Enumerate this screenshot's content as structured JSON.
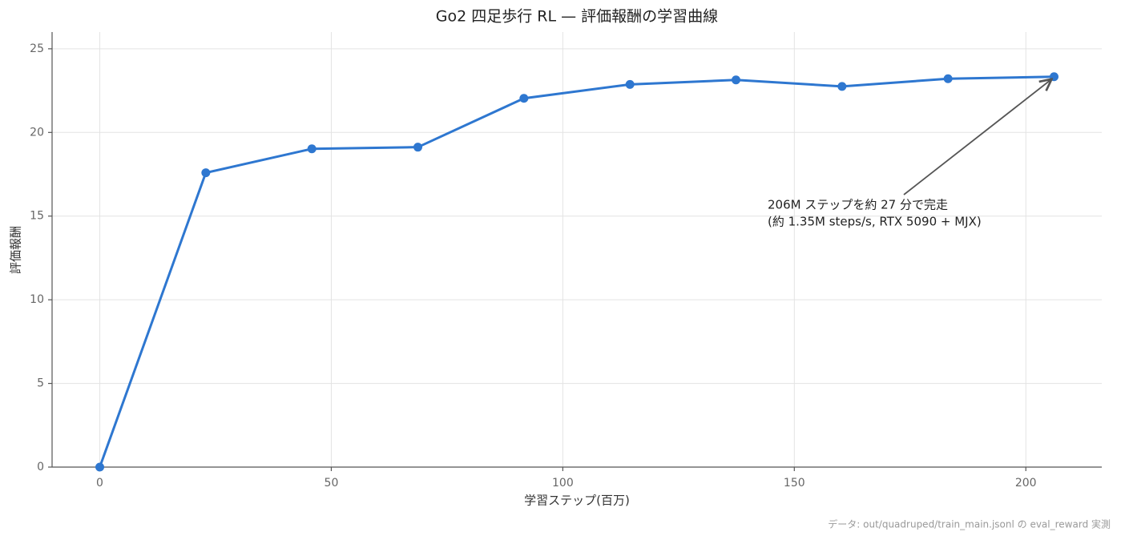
{
  "chart_data": {
    "type": "line",
    "title": "Go2 四足歩行 RL — 評価報酬の学習曲線",
    "x_label": "学習ステップ(百万)",
    "y_label": "評価報酬",
    "x": [
      0,
      22.9,
      45.8,
      68.7,
      91.6,
      114.5,
      137.4,
      160.3,
      183.2,
      206.1
    ],
    "series": [
      {
        "name": "評価報酬",
        "color": "#2e77d0",
        "values": [
          0,
          17.59,
          19.02,
          19.12,
          22.04,
          22.87,
          23.14,
          22.75,
          23.21,
          23.33
        ]
      }
    ],
    "xlim": [
      -10.3,
      216.4
    ],
    "ylim": [
      0,
      26
    ],
    "xticks": [
      0,
      50,
      100,
      150,
      200
    ],
    "yticks": [
      0,
      5,
      10,
      15,
      20,
      25
    ],
    "grid": true,
    "annotation": [
      "206M ステップを約 27 分で完走",
      "(約 1.35M steps/s, RTX 5090 + MJX)"
    ],
    "footnote": "データ: out/quadruped/train_main.jsonl の eval_reward 実測"
  }
}
